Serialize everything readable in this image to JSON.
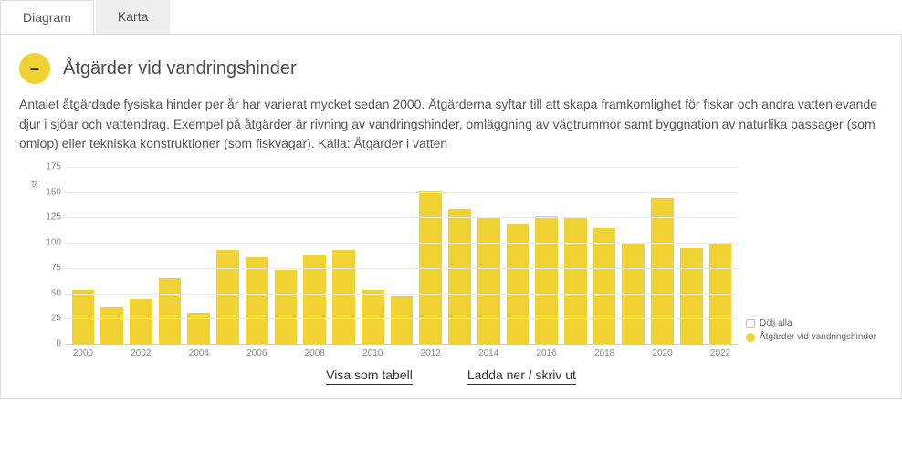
{
  "tabs": {
    "diagram": "Diagram",
    "karta": "Karta"
  },
  "collapse_icon": "–",
  "title": "Åtgärder vid vandringshinder",
  "description": "Antalet åtgärdade fysiska hinder per år har varierat mycket sedan 2000. Åtgärderna syftar till att skapa framkomlighet för fiskar och andra vattenlevande djur i sjöar och vattendrag. Exempel på åtgärder är rivning av vandringshinder, omläggning av vägtrummor samt byggnation av naturlika passager (som omlöp) eller tekniska konstruktioner (som fiskvägar). Källa: Åtgärder i vatten",
  "chart": {
    "type": "bar",
    "y_axis_label": "st",
    "ylim": [
      0,
      175
    ],
    "ytick_step": 25,
    "yticks": [
      0,
      25,
      50,
      75,
      100,
      125,
      150,
      175
    ],
    "categories": [
      "2000",
      "2001",
      "2002",
      "2003",
      "2004",
      "2005",
      "2006",
      "2007",
      "2008",
      "2009",
      "2010",
      "2011",
      "2012",
      "2013",
      "2014",
      "2015",
      "2016",
      "2017",
      "2018",
      "2019",
      "2020",
      "2021",
      "2022"
    ],
    "x_label_every": 2,
    "values": [
      53,
      36,
      44,
      65,
      31,
      93,
      86,
      73,
      88,
      93,
      53,
      47,
      152,
      134,
      125,
      118,
      126,
      125,
      115,
      99,
      144,
      95,
      100
    ],
    "bar_color": "#f0d233",
    "grid_color": "#e8e8e8",
    "axis_text_color": "#888888",
    "background_color": "#ffffff"
  },
  "legend": {
    "hide_all": "Dölj alla",
    "series_label": "Åtgärder vid vandringshinder",
    "series_color": "#f0d233"
  },
  "footer": {
    "show_table": "Visa som tabell",
    "download_print": "Ladda ner / skriv ut"
  }
}
